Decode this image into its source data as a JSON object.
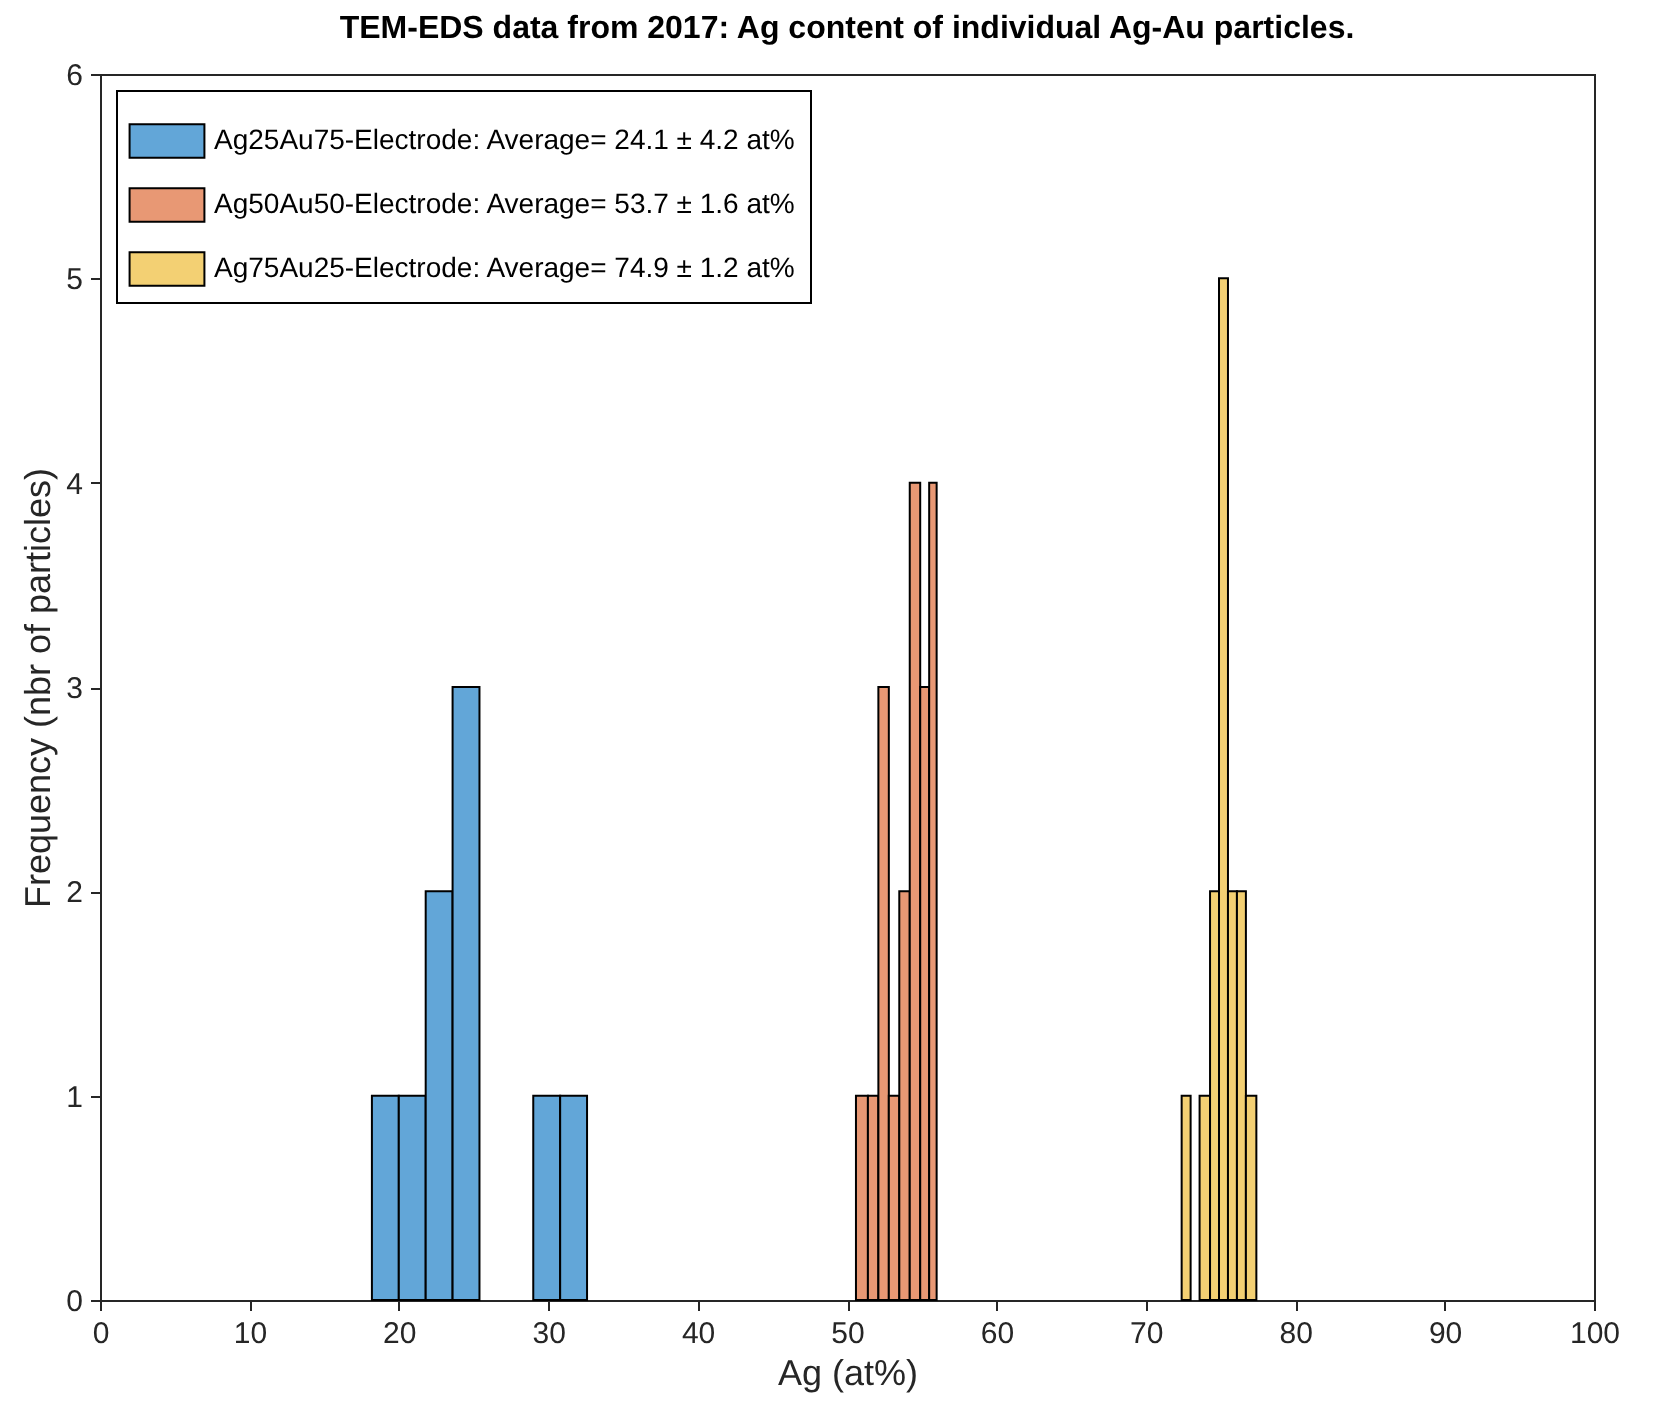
{
  "chart_data": {
    "type": "histogram",
    "title": "TEM-EDS data from 2017: Ag content of individual Ag-Au particles.",
    "xlabel": "Ag (at%)",
    "ylabel": "Frequency (nbr of particles)",
    "bins": [
      18.2,
      20.0,
      21.8,
      23.6,
      25.4,
      29.0,
      30.8,
      32.6,
      50.6,
      51.4,
      52.1,
      52.8,
      53.5,
      54.2,
      54.9,
      55.5,
      56.0,
      72.4,
      73.0,
      73.6,
      74.3,
      74.9,
      75.5,
      76.1,
      76.7,
      77.4
    ],
    "series": [
      {
        "name": "Ag25Au75-Electrode: Average= 24.1 ± 4.2 at%",
        "color": "#62a6d8",
        "values": [
          1,
          1,
          2,
          3,
          null,
          1,
          1,
          null,
          null,
          null,
          null,
          null,
          null,
          null,
          null,
          null,
          null,
          null,
          null,
          null,
          null,
          null,
          null,
          null,
          null
        ]
      },
      {
        "name": "Ag50Au50-Electrode: Average= 53.7 ± 1.6 at%",
        "color": "#e89874",
        "values": [
          null,
          null,
          null,
          null,
          null,
          null,
          null,
          null,
          1,
          1,
          3,
          1,
          2,
          4,
          3,
          4,
          null,
          null,
          null,
          null,
          null,
          null,
          null,
          null,
          null
        ]
      },
      {
        "name": "Ag75Au25-Electrode: Average= 74.9 ± 1.2 at%",
        "color": "#f3d073",
        "values": [
          null,
          null,
          null,
          null,
          null,
          null,
          null,
          null,
          null,
          null,
          null,
          null,
          null,
          null,
          null,
          null,
          null,
          1,
          0,
          1,
          2,
          5,
          2,
          2,
          1
        ]
      }
    ],
    "xlim": [
      0,
      100
    ],
    "xticks": [
      0,
      10,
      20,
      30,
      40,
      50,
      60,
      70,
      80,
      90,
      100
    ],
    "ylim": [
      0,
      6
    ],
    "yticks": [
      0,
      1,
      2,
      3,
      4,
      5,
      6
    ],
    "grid": false,
    "legend": "top left"
  }
}
